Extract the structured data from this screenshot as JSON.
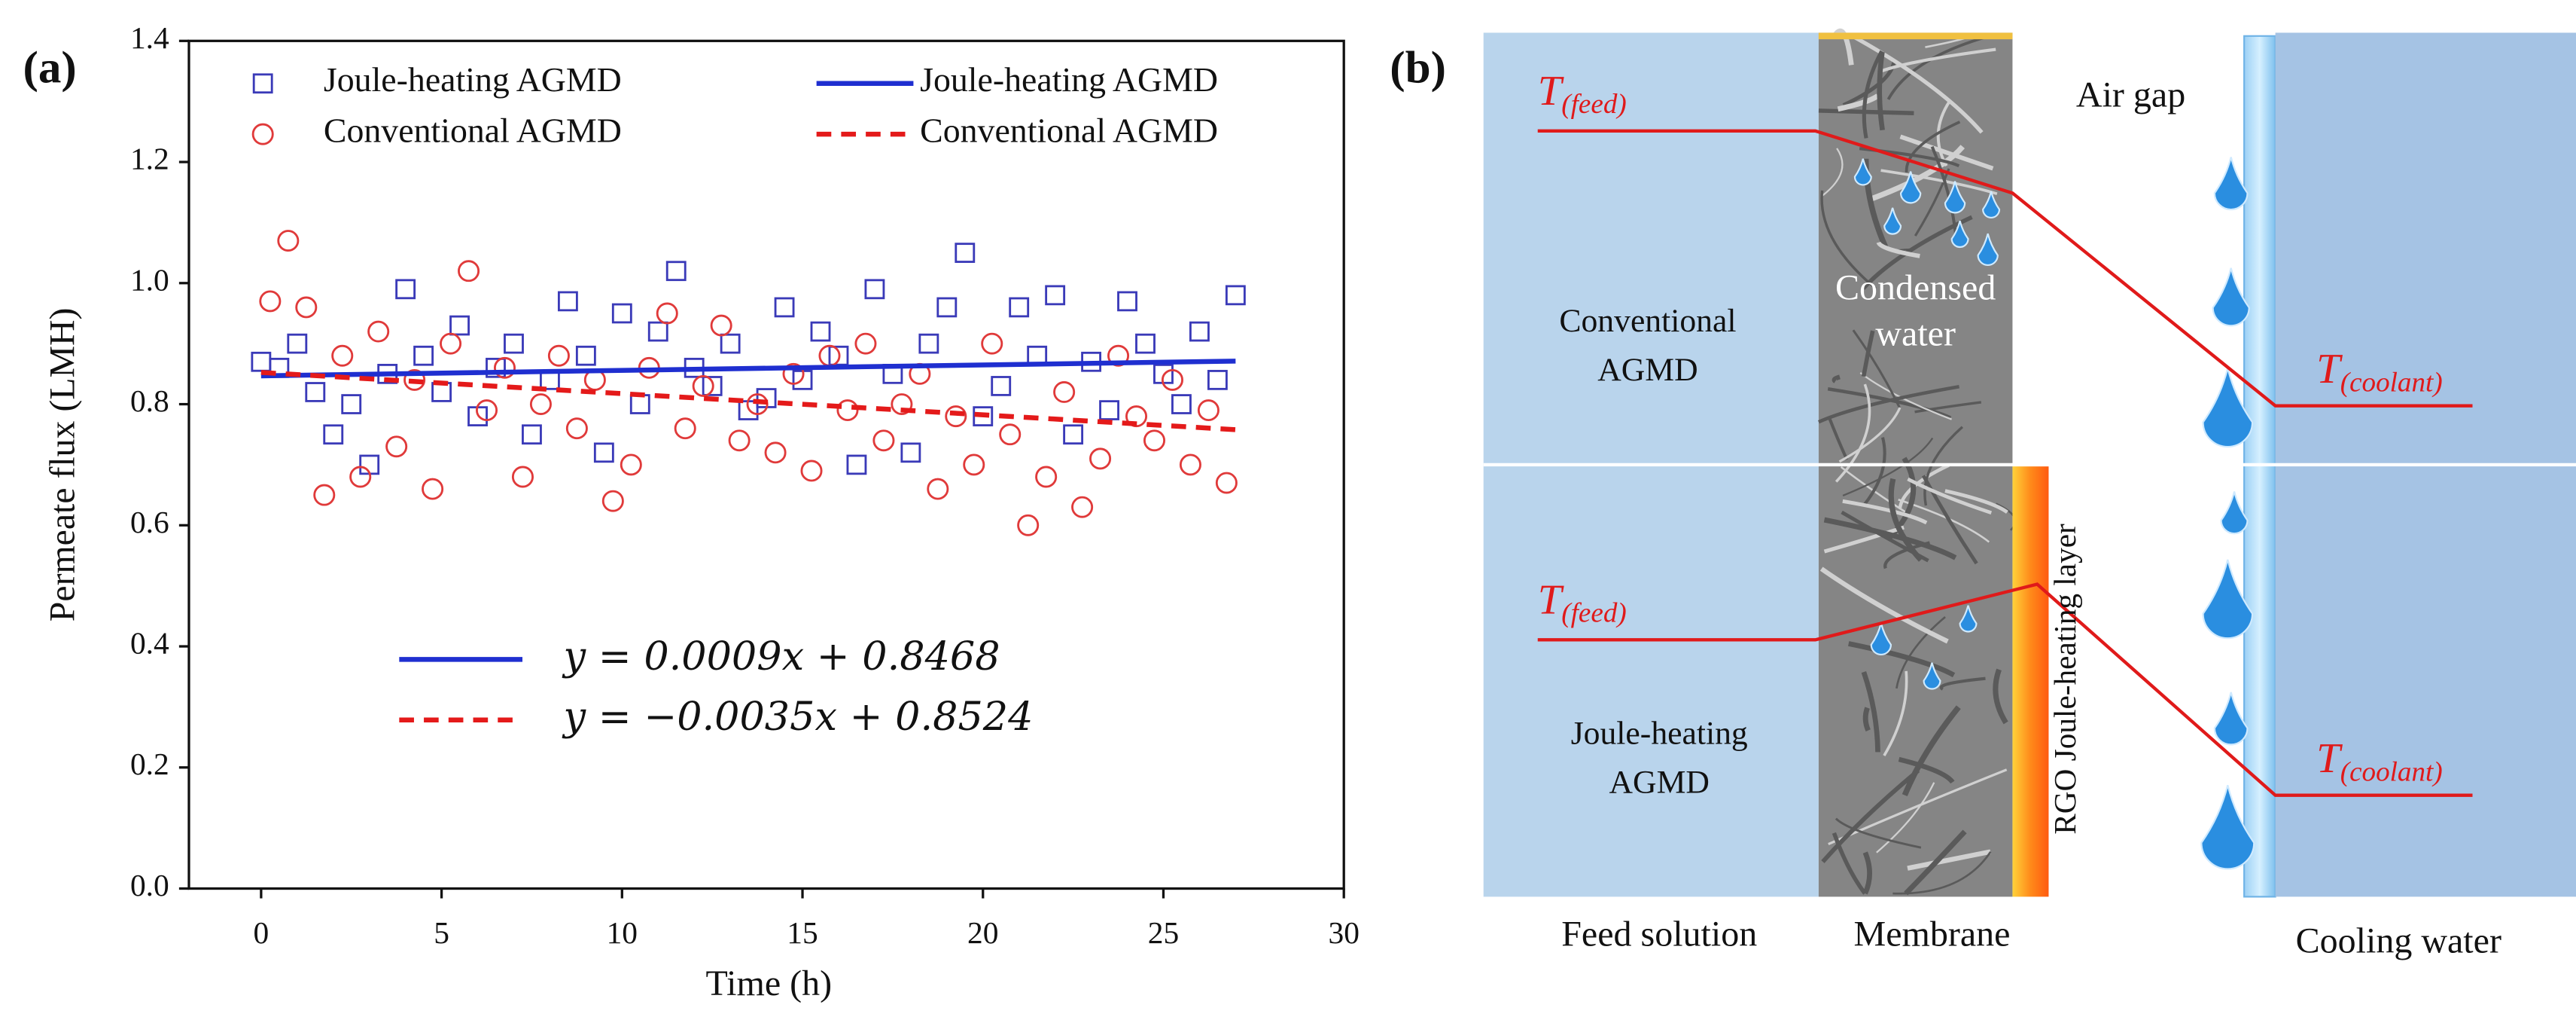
{
  "chart_data": {
    "type": "scatter",
    "panel_label": "(a)",
    "xlabel": "Time (h)",
    "ylabel": "Permeate flux (LMH)",
    "xlim": [
      -2,
      30
    ],
    "xticks": [
      0,
      5,
      10,
      15,
      20,
      25,
      30
    ],
    "ylim": [
      0,
      1.4
    ],
    "yticks": [
      {
        "value": 0,
        "label": "0.0"
      },
      0.2,
      0.4,
      0.6,
      0.8,
      {
        "value": 1,
        "label": "1.0"
      },
      1.2,
      1.4
    ],
    "series": [
      {
        "name": "Joule-heating AGMD",
        "color": "#3a3ab8",
        "marker": "square",
        "x": [
          0,
          0.5,
          1,
          1.5,
          2,
          2.5,
          3,
          3.5,
          4,
          4.5,
          5,
          5.5,
          6,
          6.5,
          7,
          7.5,
          8,
          8.5,
          9,
          9.5,
          10,
          10.5,
          11,
          11.5,
          12,
          12.5,
          13,
          13.5,
          14,
          14.5,
          15,
          15.5,
          16,
          16.5,
          17,
          17.5,
          18,
          18.5,
          19,
          19.5,
          20,
          20.5,
          21,
          21.5,
          22,
          22.5,
          23,
          23.5,
          24,
          24.5,
          25,
          25.5,
          26,
          26.5,
          27
        ],
        "values": [
          0.87,
          0.86,
          0.9,
          0.82,
          0.75,
          0.8,
          0.7,
          0.85,
          0.99,
          0.88,
          0.82,
          0.93,
          0.78,
          0.86,
          0.9,
          0.75,
          0.84,
          0.97,
          0.88,
          0.72,
          0.95,
          0.8,
          0.92,
          1.02,
          0.86,
          0.83,
          0.9,
          0.79,
          0.81,
          0.96,
          0.84,
          0.92,
          0.88,
          0.7,
          0.99,
          0.85,
          0.72,
          0.9,
          0.96,
          1.05,
          0.78,
          0.83,
          0.96,
          0.88,
          0.98,
          0.75,
          0.87,
          0.79,
          0.97,
          0.9,
          0.85,
          0.8,
          0.92,
          0.84,
          0.98
        ]
      },
      {
        "name": "Conventional AGMD",
        "color": "#e03a3a",
        "marker": "circle",
        "x": [
          0.25,
          0.75,
          1.25,
          1.75,
          2.25,
          2.75,
          3.25,
          3.75,
          4.25,
          4.75,
          5.25,
          5.75,
          6.25,
          6.75,
          7.25,
          7.75,
          8.25,
          8.75,
          9.25,
          9.75,
          10.25,
          10.75,
          11.25,
          11.75,
          12.25,
          12.75,
          13.25,
          13.75,
          14.25,
          14.75,
          15.25,
          15.75,
          16.25,
          16.75,
          17.25,
          17.75,
          18.25,
          18.75,
          19.25,
          19.75,
          20.25,
          20.75,
          21.25,
          21.75,
          22.25,
          22.75,
          23.25,
          23.75,
          24.25,
          24.75,
          25.25,
          25.75,
          26.25,
          26.75
        ],
        "values": [
          0.97,
          1.07,
          0.96,
          0.65,
          0.88,
          0.68,
          0.92,
          0.73,
          0.84,
          0.66,
          0.9,
          1.02,
          0.79,
          0.86,
          0.68,
          0.8,
          0.88,
          0.76,
          0.84,
          0.64,
          0.7,
          0.86,
          0.95,
          0.76,
          0.83,
          0.93,
          0.74,
          0.8,
          0.72,
          0.85,
          0.69,
          0.88,
          0.79,
          0.9,
          0.74,
          0.8,
          0.85,
          0.66,
          0.78,
          0.7,
          0.9,
          0.75,
          0.6,
          0.68,
          0.82,
          0.63,
          0.71,
          0.88,
          0.78,
          0.74,
          0.84,
          0.7,
          0.79,
          0.67
        ]
      },
      {
        "name": "Joule-heating AGMD",
        "color": "#1f2fd0",
        "marker": "line",
        "dash": false,
        "x": [
          0,
          27
        ],
        "values": [
          0.8468,
          0.8711
        ]
      },
      {
        "name": "Conventional AGMD",
        "color": "#e41a1a",
        "marker": "line",
        "dash": true,
        "x": [
          0,
          27
        ],
        "values": [
          0.8524,
          0.7579
        ]
      }
    ],
    "annotations": [
      "y = 0.0009x + 0.8468",
      "y = −0.0035x + 0.8524"
    ]
  },
  "diagram": {
    "panel_label": "(b)",
    "symbol": "T",
    "feed": "(feed)",
    "coolant": "(coolant)",
    "air_gap": "Air gap",
    "conventional": [
      "Conventional",
      "AGMD"
    ],
    "joule": [
      "Joule-heating",
      "AGMD"
    ],
    "condensed": [
      "Condensed",
      "water"
    ],
    "rgo": "RGO Joule-heating layer",
    "bottom_labels": [
      "Feed solution",
      "Membrane",
      "Cooling water"
    ]
  }
}
